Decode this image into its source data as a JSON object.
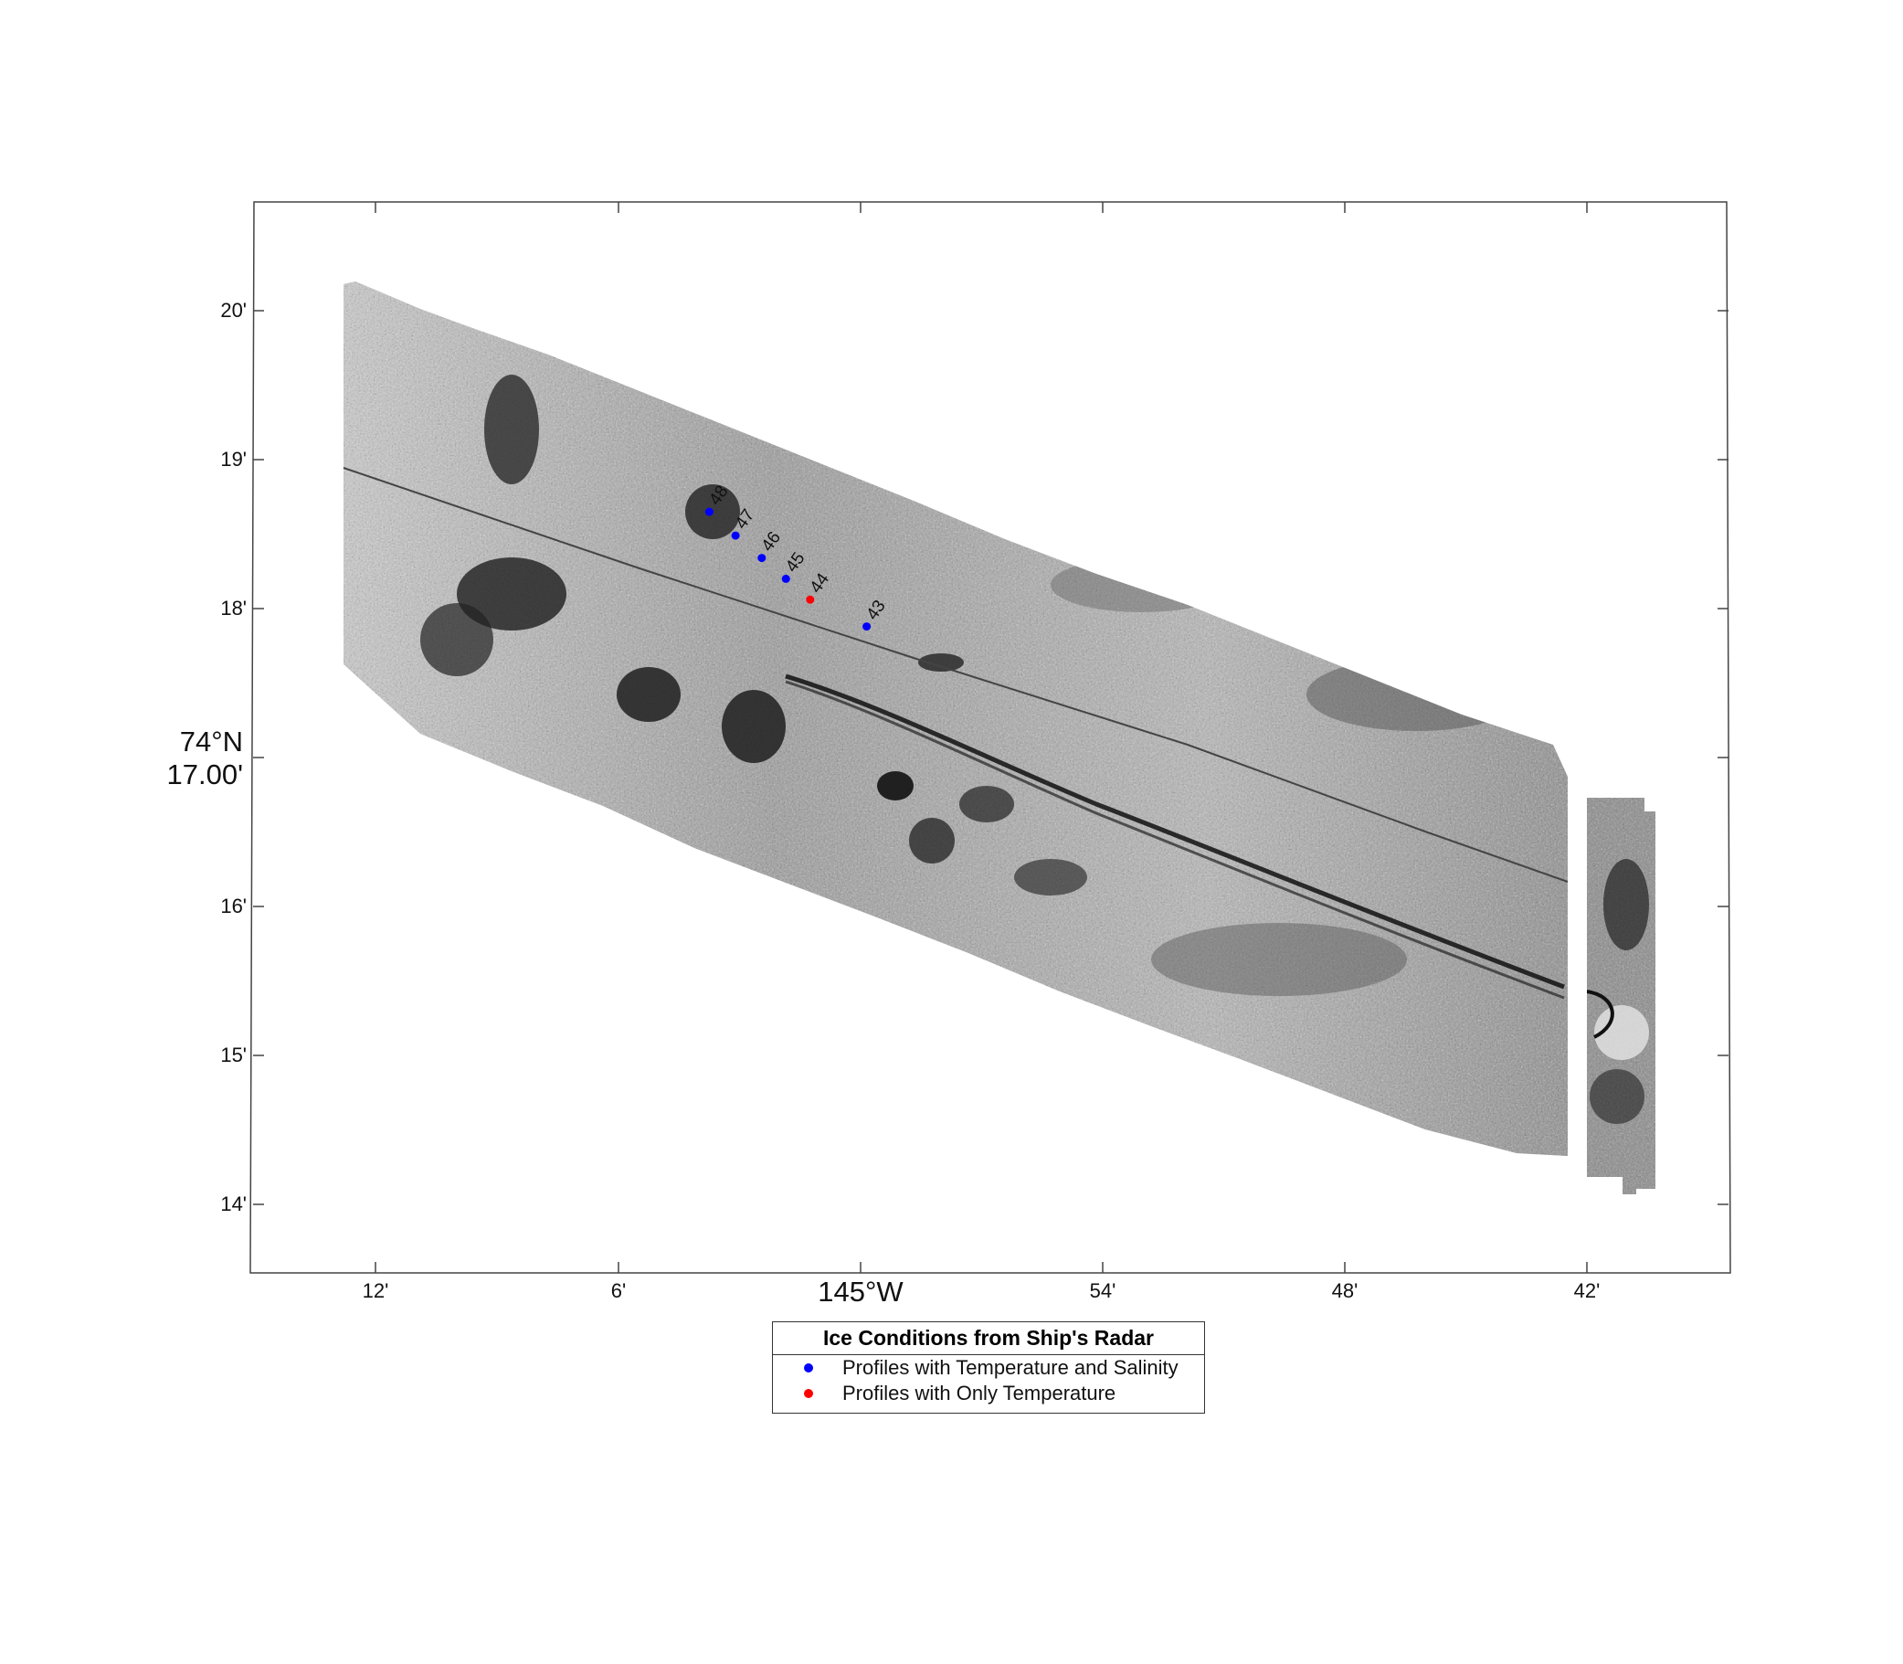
{
  "map": {
    "longitude_ticks": [
      "12'",
      "6'",
      "145°W",
      "54'",
      "48'",
      "42'"
    ],
    "latitude_ticks": [
      "20'",
      "19'",
      "18'",
      "16'",
      "15'",
      "14'"
    ],
    "latitude_center_label": {
      "line1": "74°N",
      "line2": "17.00'"
    },
    "radar_imagery": "ship radar ice conditions mosaic (grayscale strip)",
    "ship_track": "ship track line along radar swath"
  },
  "stations": [
    {
      "id": "48",
      "lon_min": -148.75,
      "lat_min": 18.65,
      "type": "temperature_salinity"
    },
    {
      "id": "47",
      "lon_min": -148.1,
      "lat_min": 18.49,
      "type": "temperature_salinity"
    },
    {
      "id": "46",
      "lon_min": -147.45,
      "lat_min": 18.34,
      "type": "temperature_salinity"
    },
    {
      "id": "45",
      "lon_min": -146.85,
      "lat_min": 18.2,
      "type": "temperature_salinity"
    },
    {
      "id": "44",
      "lon_min": -146.25,
      "lat_min": 18.06,
      "type": "temperature_only"
    },
    {
      "id": "43",
      "lon_min": -144.85,
      "lat_min": 17.88,
      "type": "temperature_salinity"
    }
  ],
  "legend": {
    "title": "Ice Conditions from Ship's Radar",
    "items": [
      {
        "label": "Profiles with Temperature and Salinity",
        "color": "#0000ff"
      },
      {
        "label": "Profiles with Only Temperature",
        "color": "#ff0000"
      }
    ]
  },
  "colors": {
    "temperature_salinity": "#0000ff",
    "temperature_only": "#ff0000",
    "frame": "#444444"
  }
}
